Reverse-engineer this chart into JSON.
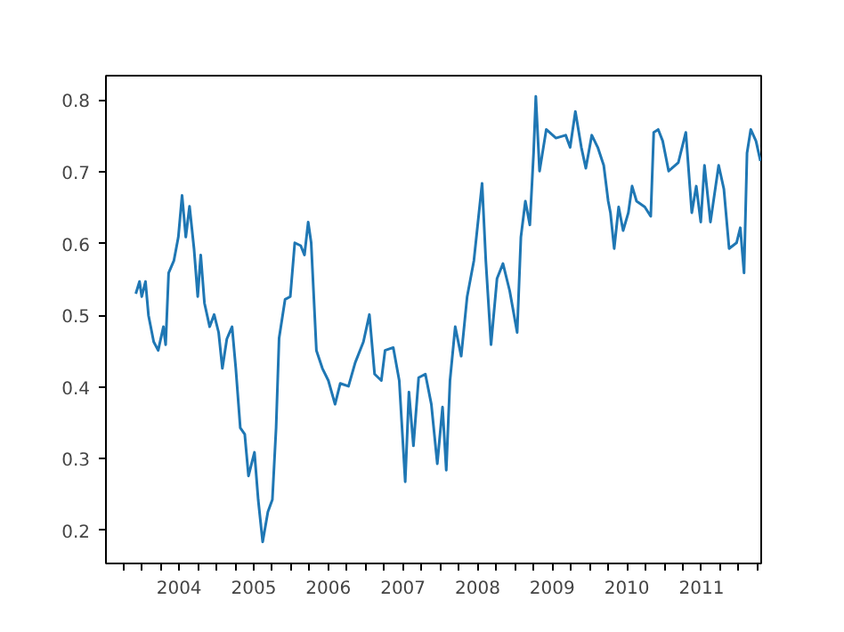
{
  "chart_data": {
    "type": "line",
    "x": [
      2003.42,
      2003.47,
      2003.5,
      2003.55,
      2003.59,
      2003.66,
      2003.72,
      2003.79,
      2003.82,
      2003.86,
      2003.93,
      2003.99,
      2004.04,
      2004.09,
      2004.14,
      2004.2,
      2004.25,
      2004.29,
      2004.34,
      2004.41,
      2004.47,
      2004.53,
      2004.58,
      2004.64,
      2004.71,
      2004.76,
      2004.82,
      2004.88,
      2004.93,
      2005.01,
      2005.06,
      2005.12,
      2005.19,
      2005.25,
      2005.3,
      2005.34,
      2005.42,
      2005.49,
      2005.55,
      2005.63,
      2005.68,
      2005.73,
      2005.77,
      2005.84,
      2005.92,
      2006.0,
      2006.09,
      2006.16,
      2006.27,
      2006.36,
      2006.47,
      2006.55,
      2006.62,
      2006.71,
      2006.76,
      2006.87,
      2006.95,
      2007.03,
      2007.08,
      2007.14,
      2007.21,
      2007.3,
      2007.38,
      2007.46,
      2007.53,
      2007.58,
      2007.63,
      2007.7,
      2007.78,
      2007.86,
      2007.95,
      2008.06,
      2008.11,
      2008.18,
      2008.26,
      2008.34,
      2008.43,
      2008.53,
      2008.58,
      2008.64,
      2008.7,
      2008.75,
      2008.78,
      2008.83,
      2008.92,
      2009.05,
      2009.18,
      2009.24,
      2009.31,
      2009.39,
      2009.45,
      2009.53,
      2009.61,
      2009.69,
      2009.75,
      2009.78,
      2009.83,
      2009.89,
      2009.95,
      2010.02,
      2010.07,
      2010.13,
      2010.24,
      2010.32,
      2010.36,
      2010.42,
      2010.48,
      2010.56,
      2010.69,
      2010.79,
      2010.87,
      2010.93,
      2010.99,
      2011.04,
      2011.12,
      2011.23,
      2011.3,
      2011.37,
      2011.47,
      2011.52,
      2011.57,
      2011.61,
      2011.66,
      2011.73,
      2011.79
    ],
    "series": [
      {
        "color": "#1f77b4",
        "values": [
          0.53,
          0.547,
          0.526,
          0.547,
          0.5,
          0.463,
          0.451,
          0.484,
          0.459,
          0.559,
          0.576,
          0.609,
          0.667,
          0.609,
          0.652,
          0.593,
          0.526,
          0.584,
          0.517,
          0.484,
          0.501,
          0.476,
          0.426,
          0.467,
          0.484,
          0.426,
          0.343,
          0.334,
          0.276,
          0.309,
          0.243,
          0.184,
          0.226,
          0.243,
          0.343,
          0.468,
          0.522,
          0.526,
          0.601,
          0.597,
          0.584,
          0.63,
          0.601,
          0.451,
          0.426,
          0.409,
          0.376,
          0.405,
          0.401,
          0.434,
          0.463,
          0.501,
          0.418,
          0.409,
          0.451,
          0.455,
          0.409,
          0.268,
          0.393,
          0.318,
          0.413,
          0.418,
          0.376,
          0.293,
          0.372,
          0.284,
          0.409,
          0.484,
          0.443,
          0.526,
          0.576,
          0.684,
          0.576,
          0.459,
          0.551,
          0.572,
          0.534,
          0.476,
          0.609,
          0.659,
          0.626,
          0.726,
          0.805,
          0.701,
          0.759,
          0.747,
          0.751,
          0.734,
          0.784,
          0.734,
          0.705,
          0.751,
          0.734,
          0.709,
          0.659,
          0.643,
          0.593,
          0.651,
          0.618,
          0.643,
          0.68,
          0.659,
          0.651,
          0.638,
          0.755,
          0.759,
          0.743,
          0.701,
          0.713,
          0.755,
          0.643,
          0.68,
          0.63,
          0.709,
          0.63,
          0.709,
          0.676,
          0.593,
          0.601,
          0.622,
          0.559,
          0.726,
          0.759,
          0.743,
          0.715
        ]
      }
    ],
    "xlim": [
      2003.02,
      2011.8
    ],
    "xticks": [
      {
        "value": 2003.25,
        "label": null
      },
      {
        "value": 2003.5,
        "label": null
      },
      {
        "value": 2003.75,
        "label": null
      },
      2004,
      {
        "value": 2004.25,
        "label": null
      },
      {
        "value": 2004.5,
        "label": null
      },
      {
        "value": 2004.75,
        "label": null
      },
      2005,
      {
        "value": 2005.25,
        "label": null
      },
      {
        "value": 2005.5,
        "label": null
      },
      {
        "value": 2005.75,
        "label": null
      },
      2006,
      {
        "value": 2006.25,
        "label": null
      },
      {
        "value": 2006.5,
        "label": null
      },
      {
        "value": 2006.75,
        "label": null
      },
      2007,
      {
        "value": 2007.25,
        "label": null
      },
      {
        "value": 2007.5,
        "label": null
      },
      {
        "value": 2007.75,
        "label": null
      },
      2008,
      {
        "value": 2008.25,
        "label": null
      },
      {
        "value": 2008.5,
        "label": null
      },
      {
        "value": 2008.75,
        "label": null
      },
      2009,
      {
        "value": 2009.25,
        "label": null
      },
      {
        "value": 2009.5,
        "label": null
      },
      {
        "value": 2009.75,
        "label": null
      },
      2010,
      {
        "value": 2010.25,
        "label": null
      },
      {
        "value": 2010.5,
        "label": null
      },
      {
        "value": 2010.75,
        "label": null
      },
      2011,
      {
        "value": 2011.25,
        "label": null
      },
      {
        "value": 2011.5,
        "label": null
      },
      {
        "value": 2011.75,
        "label": null
      }
    ],
    "ylim": [
      0.154,
      0.834
    ],
    "yticks": [
      0.2,
      0.3,
      0.4,
      0.5,
      0.6,
      0.7,
      0.8
    ]
  }
}
